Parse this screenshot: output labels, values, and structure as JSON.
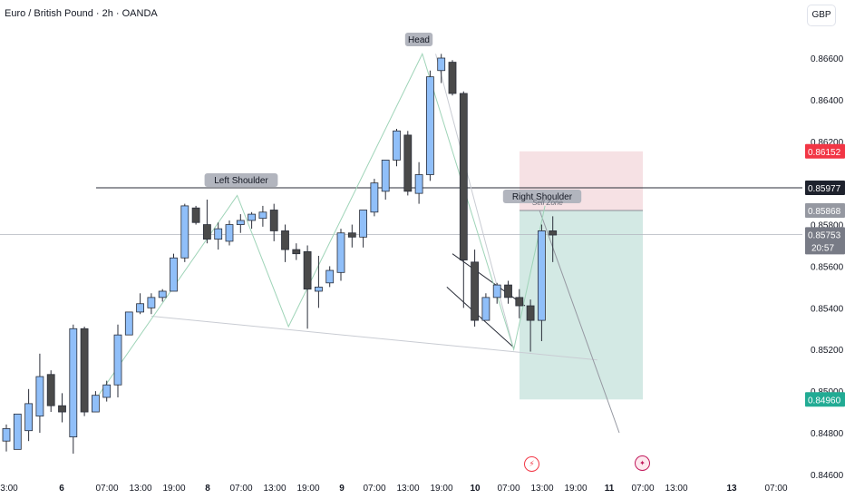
{
  "header": {
    "title": "Euro / British Pound · 2h · OANDA",
    "currency": "GBP"
  },
  "colors": {
    "up": "#90bff9",
    "down": "#4a4a4a",
    "candle_border": "#2a2e39",
    "pattern": "#9fd4b8",
    "loss_zone": "#f5dcdf",
    "profit_zone": "#d1e8e3",
    "stop_badge": "#f23645",
    "target_badge": "#22ab94",
    "price_badge": "#1e222d",
    "gray_badge": "#9598a1"
  },
  "chart_data": {
    "type": "candlestick",
    "title": "Euro / British Pound · 2h · OANDA",
    "yaxis": {
      "range": [
        0.846,
        0.868
      ],
      "ticks": [
        "0.86600",
        "0.86400",
        "0.86200",
        "0.85800",
        "0.85600",
        "0.85400",
        "0.85200",
        "0.85000",
        "0.84800",
        "0.84600"
      ]
    },
    "xaxis": {
      "ticks": [
        "3:00",
        "6",
        "07:00",
        "13:00",
        "19:00",
        "8",
        "07:00",
        "13:00",
        "19:00",
        "9",
        "07:00",
        "13:00",
        "19:00",
        "10",
        "07:00",
        "13:00",
        "19:00",
        "11",
        "07:00",
        "13:00",
        "13",
        "07:00"
      ],
      "bold_ticks": [
        "6",
        "8",
        "9",
        "10",
        "11",
        "13"
      ]
    },
    "candles": [
      {
        "o": 0.8476,
        "h": 0.8484,
        "l": 0.8471,
        "c": 0.8482
      },
      {
        "o": 0.8472,
        "h": 0.8489,
        "l": 0.8472,
        "c": 0.8489
      },
      {
        "o": 0.8481,
        "h": 0.8501,
        "l": 0.8476,
        "c": 0.8494
      },
      {
        "o": 0.8488,
        "h": 0.8518,
        "l": 0.848,
        "c": 0.8507
      },
      {
        "o": 0.8508,
        "h": 0.851,
        "l": 0.849,
        "c": 0.8493
      },
      {
        "o": 0.8493,
        "h": 0.8499,
        "l": 0.8485,
        "c": 0.849
      },
      {
        "o": 0.8478,
        "h": 0.8532,
        "l": 0.847,
        "c": 0.853
      },
      {
        "o": 0.853,
        "h": 0.8531,
        "l": 0.8488,
        "c": 0.849
      },
      {
        "o": 0.849,
        "h": 0.85,
        "l": 0.849,
        "c": 0.8498
      },
      {
        "o": 0.8497,
        "h": 0.8505,
        "l": 0.8495,
        "c": 0.8503
      },
      {
        "o": 0.8503,
        "h": 0.8532,
        "l": 0.8497,
        "c": 0.8527
      },
      {
        "o": 0.8527,
        "h": 0.8538,
        "l": 0.8527,
        "c": 0.8538
      },
      {
        "o": 0.8538,
        "h": 0.8547,
        "l": 0.8537,
        "c": 0.8542
      },
      {
        "o": 0.854,
        "h": 0.8547,
        "l": 0.8537,
        "c": 0.8545
      },
      {
        "o": 0.8545,
        "h": 0.8549,
        "l": 0.8543,
        "c": 0.8548
      },
      {
        "o": 0.8548,
        "h": 0.8566,
        "l": 0.8548,
        "c": 0.8564
      },
      {
        "o": 0.8564,
        "h": 0.859,
        "l": 0.8562,
        "c": 0.8589
      },
      {
        "o": 0.8588,
        "h": 0.8589,
        "l": 0.858,
        "c": 0.8581
      },
      {
        "o": 0.858,
        "h": 0.8592,
        "l": 0.8571,
        "c": 0.8573
      },
      {
        "o": 0.8573,
        "h": 0.8581,
        "l": 0.8568,
        "c": 0.8578
      },
      {
        "o": 0.8572,
        "h": 0.8582,
        "l": 0.857,
        "c": 0.858
      },
      {
        "o": 0.858,
        "h": 0.8585,
        "l": 0.8576,
        "c": 0.8582
      },
      {
        "o": 0.8582,
        "h": 0.8586,
        "l": 0.8578,
        "c": 0.8585
      },
      {
        "o": 0.8583,
        "h": 0.8589,
        "l": 0.8579,
        "c": 0.8586
      },
      {
        "o": 0.8587,
        "h": 0.859,
        "l": 0.8572,
        "c": 0.8577
      },
      {
        "o": 0.8577,
        "h": 0.858,
        "l": 0.8562,
        "c": 0.8568
      },
      {
        "o": 0.8568,
        "h": 0.8571,
        "l": 0.8563,
        "c": 0.8566
      },
      {
        "o": 0.8567,
        "h": 0.857,
        "l": 0.853,
        "c": 0.8549
      },
      {
        "o": 0.8548,
        "h": 0.8565,
        "l": 0.854,
        "c": 0.855
      },
      {
        "o": 0.8552,
        "h": 0.856,
        "l": 0.855,
        "c": 0.8558
      },
      {
        "o": 0.8557,
        "h": 0.8578,
        "l": 0.8553,
        "c": 0.8576
      },
      {
        "o": 0.8576,
        "h": 0.858,
        "l": 0.8569,
        "c": 0.8574
      },
      {
        "o": 0.8574,
        "h": 0.8587,
        "l": 0.8569,
        "c": 0.8587
      },
      {
        "o": 0.8586,
        "h": 0.8602,
        "l": 0.8584,
        "c": 0.86
      },
      {
        "o": 0.8596,
        "h": 0.8611,
        "l": 0.8592,
        "c": 0.8611
      },
      {
        "o": 0.8611,
        "h": 0.8626,
        "l": 0.8608,
        "c": 0.8625
      },
      {
        "o": 0.8623,
        "h": 0.8625,
        "l": 0.8594,
        "c": 0.8596
      },
      {
        "o": 0.8595,
        "h": 0.861,
        "l": 0.859,
        "c": 0.8604
      },
      {
        "o": 0.8604,
        "h": 0.8654,
        "l": 0.8601,
        "c": 0.8651
      },
      {
        "o": 0.8654,
        "h": 0.8662,
        "l": 0.8648,
        "c": 0.866
      },
      {
        "o": 0.8658,
        "h": 0.8659,
        "l": 0.8642,
        "c": 0.8643
      },
      {
        "o": 0.8643,
        "h": 0.8644,
        "l": 0.854,
        "c": 0.8563
      },
      {
        "o": 0.8562,
        "h": 0.8568,
        "l": 0.8531,
        "c": 0.8534
      },
      {
        "o": 0.8534,
        "h": 0.8547,
        "l": 0.8534,
        "c": 0.8545
      },
      {
        "o": 0.8545,
        "h": 0.8552,
        "l": 0.8542,
        "c": 0.8551
      },
      {
        "o": 0.8551,
        "h": 0.8553,
        "l": 0.8542,
        "c": 0.8545
      },
      {
        "o": 0.8545,
        "h": 0.8549,
        "l": 0.8535,
        "c": 0.8541
      },
      {
        "o": 0.8541,
        "h": 0.8544,
        "l": 0.8519,
        "c": 0.8534
      },
      {
        "o": 0.8534,
        "h": 0.858,
        "l": 0.8524,
        "c": 0.8577
      },
      {
        "o": 0.8577,
        "h": 0.8584,
        "l": 0.8562,
        "c": 0.8575
      }
    ],
    "horizontal_lines": [
      {
        "price": 0.85977,
        "style": "solid"
      },
      {
        "price": 0.85753,
        "style": "thin"
      }
    ],
    "position": {
      "type": "short",
      "entry": 0.85868,
      "stop": 0.86152,
      "target": 0.8496
    },
    "annotations": [
      {
        "label": "Left Shoulder"
      },
      {
        "label": "Head"
      },
      {
        "label": "Right Shoulder"
      },
      {
        "label": "Sell Zone"
      }
    ],
    "price_labels": {
      "stop": "0.86152",
      "neckline": "0.85977",
      "entry": "0.85868",
      "current": "0.85753",
      "countdown": "20:57",
      "target": "0.84960"
    }
  }
}
